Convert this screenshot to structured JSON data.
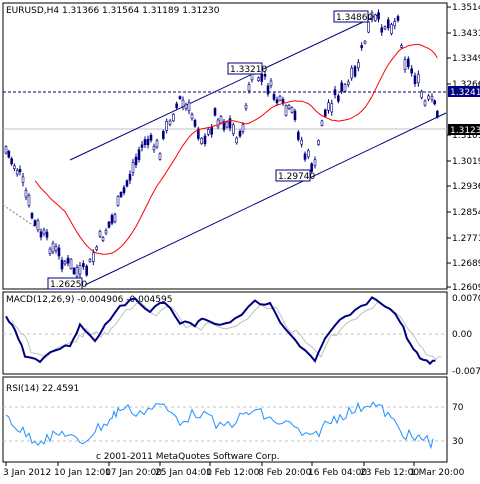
{
  "window": {
    "title": "EURUSD,H4  1.31366 1.31564 1.31189 1.31230",
    "copyright": "c 2001-2011 MetaQuotes Software Corp."
  },
  "colors": {
    "background": "#ffffff",
    "candles": "#000080",
    "channel": "#000080",
    "moving_average": "#ff0000",
    "macd_main": "#000080",
    "macd_signal": "#c0c0c0",
    "rsi": "#1e90ff",
    "level_line": "#000080"
  },
  "main_panel": {
    "y_ticks": [
      "1.35140",
      "1.34315",
      "1.33490",
      "1.32665",
      "1.31015",
      "1.30190",
      "1.29365",
      "1.28540",
      "1.27715",
      "1.26890",
      "1.26090"
    ],
    "current_price_label": "1.31230",
    "level_label": "1.32410",
    "annotations": [
      "1.34860",
      "1.33210",
      "1.29740",
      "1.26250"
    ]
  },
  "macd_panel": {
    "title": "MACD(12,26,9) -0.004906 -0.004595",
    "y_ticks": [
      "0.007077",
      "0.00",
      "-0.0077"
    ]
  },
  "rsi_panel": {
    "title": "RSI(14) 22.4591",
    "y_ticks": [
      "70",
      "30"
    ]
  },
  "time_axis": {
    "labels": [
      "3 Jan 2012",
      "10 Jan 12:00",
      "17 Jan 20:00",
      "25 Jan 04:00",
      "1 Feb 12:00",
      "8 Feb 20:00",
      "16 Feb 04:00",
      "23 Feb 12:00",
      "1 Mar 20:00"
    ]
  },
  "chart_data": {
    "type": "line",
    "x": [
      "3 Jan 2012",
      "10 Jan 12:00",
      "17 Jan 20:00",
      "25 Jan 04:00",
      "1 Feb 12:00",
      "8 Feb 20:00",
      "16 Feb 04:00",
      "23 Feb 12:00",
      "1 Mar 20:00"
    ],
    "series": [
      {
        "name": "",
        "values": [
          1.303,
          1.275,
          1.281,
          1.312,
          1.312,
          1.327,
          1.305,
          1.343,
          1.32
        ]
      }
    ],
    "ylim": [
      1.2609,
      1.3514
    ]
  }
}
